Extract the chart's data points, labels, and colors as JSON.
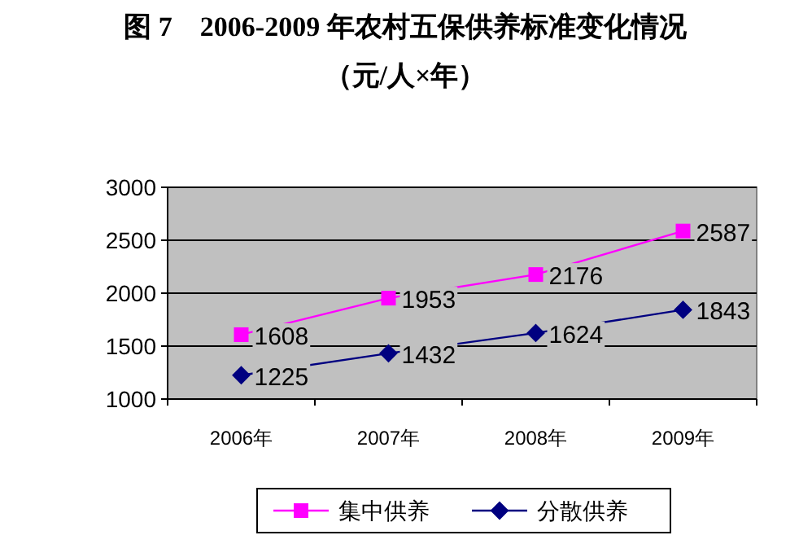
{
  "chart_data": {
    "type": "line",
    "title": "图 7    2006-2009 年农村五保供养标准变化情况",
    "subtitle": "（元/人×年）",
    "categories": [
      "2006年",
      "2007年",
      "2008年",
      "2009年"
    ],
    "series": [
      {
        "name": "集中供养",
        "color": "#ff00ff",
        "marker": "square",
        "values": [
          1608,
          1953,
          2176,
          2587
        ]
      },
      {
        "name": "分散供养",
        "color": "#000080",
        "marker": "diamond",
        "values": [
          1225,
          1432,
          1624,
          1843
        ]
      }
    ],
    "ylim": [
      1000,
      3000
    ],
    "yticks": [
      1000,
      1500,
      2000,
      2500,
      3000
    ],
    "grid": "y",
    "legend": "bottom",
    "data_labels": true
  }
}
